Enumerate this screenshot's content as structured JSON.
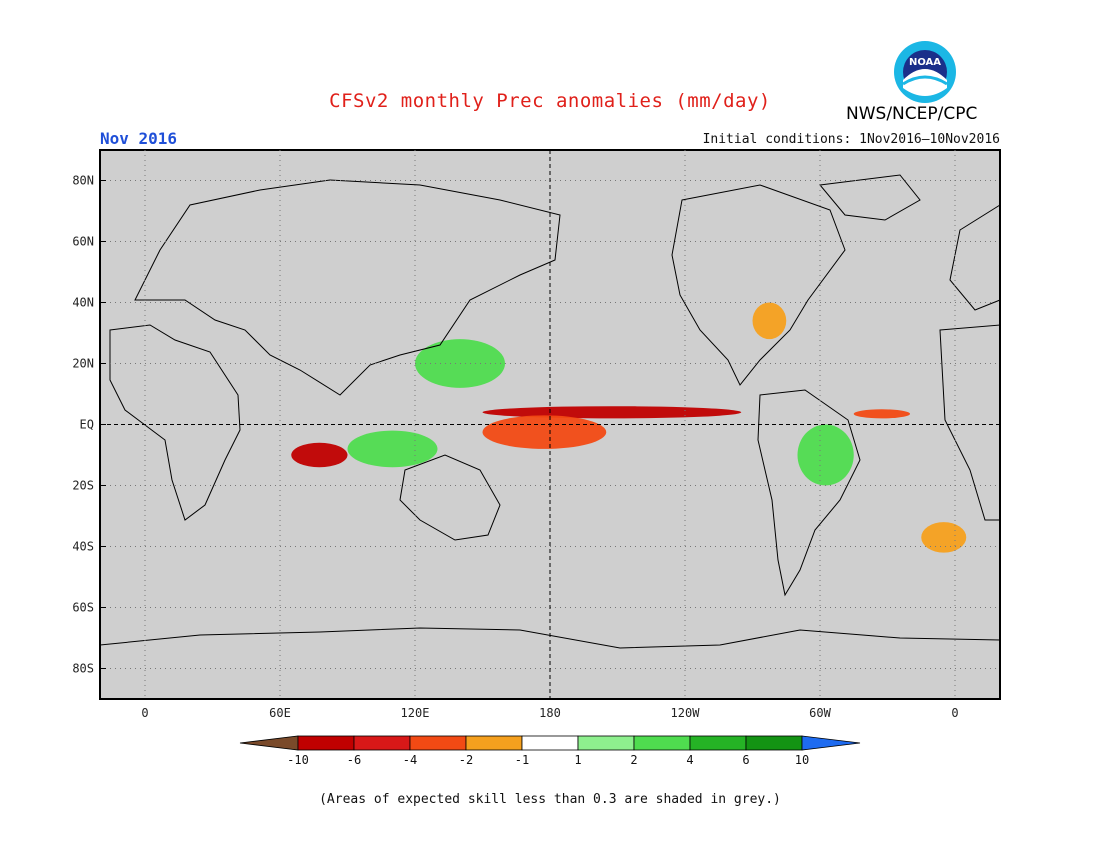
{
  "title": "CFSv2 monthly Prec anomalies (mm/day)",
  "month": "Nov 2016",
  "initial_conditions": "Initial conditions: 1Nov2016–10Nov2016",
  "agency": "NWS/NCEP/CPC",
  "logo": {
    "text": "NOAA",
    "icon": "noaa-logo"
  },
  "map": {
    "lat_labels": [
      "80N",
      "60N",
      "40N",
      "20N",
      "EQ",
      "20S",
      "40S",
      "60S",
      "80S"
    ],
    "lon_labels": [
      "0",
      "60E",
      "120E",
      "180",
      "120W",
      "60W",
      "0"
    ],
    "lat_values": [
      80,
      60,
      40,
      20,
      0,
      -20,
      -40,
      -60,
      -80
    ],
    "lon_values": [
      0,
      60,
      120,
      180,
      240,
      300,
      360
    ],
    "lat_range": [
      -90,
      90
    ],
    "lon_range": [
      -20,
      380
    ],
    "gridlines": "dotted",
    "background_color": "#cfcfcf",
    "skill_mask_note": "(Areas of expected skill less than 0.3 are shaded in grey.)"
  },
  "colorbar": {
    "tick_labels": [
      "-10",
      "-6",
      "-4",
      "-2",
      "-1",
      "1",
      "2",
      "4",
      "6",
      "10"
    ],
    "colors": [
      "#7a4a2a",
      "#c00000",
      "#d81818",
      "#f24a14",
      "#f5a01e",
      "#ffffff",
      "#8ef08e",
      "#4fdc4f",
      "#25b325",
      "#139313",
      "#1e6bf0"
    ]
  },
  "anomaly_regions": [
    {
      "label": "Equatorial Pacific dry band",
      "color": "#c00000",
      "lon": [
        150,
        265
      ],
      "lat": [
        2,
        6
      ]
    },
    {
      "label": "Central Pacific dry",
      "color": "#f24a14",
      "lon": [
        150,
        205
      ],
      "lat": [
        -8,
        3
      ]
    },
    {
      "label": "Indian Ocean dry",
      "color": "#c00000",
      "lon": [
        65,
        90
      ],
      "lat": [
        -14,
        -6
      ]
    },
    {
      "label": "Maritime Continent wet",
      "color": "#4fdc4f",
      "lon": [
        90,
        130
      ],
      "lat": [
        -14,
        -2
      ]
    },
    {
      "label": "West Pacific wet",
      "color": "#4fdc4f",
      "lon": [
        120,
        160
      ],
      "lat": [
        12,
        28
      ]
    },
    {
      "label": "Amazon wet",
      "color": "#4fdc4f",
      "lon": [
        290,
        315
      ],
      "lat": [
        -20,
        0
      ]
    },
    {
      "label": "Atlantic dry",
      "color": "#f24a14",
      "lon": [
        315,
        340
      ],
      "lat": [
        2,
        5
      ]
    },
    {
      "label": "South Atlantic dry",
      "color": "#f5a01e",
      "lon": [
        345,
        365
      ],
      "lat": [
        -42,
        -32
      ]
    },
    {
      "label": "SE US dry",
      "color": "#f5a01e",
      "lon": [
        270,
        285
      ],
      "lat": [
        28,
        40
      ]
    }
  ]
}
